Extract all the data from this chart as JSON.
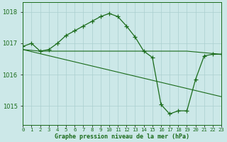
{
  "title": "Graphe pression niveau de la mer (hPa)",
  "background_color": "#cce8e8",
  "grid_color": "#aacfcf",
  "line_color": "#1a6b1a",
  "marker_color": "#1a6b1a",
  "xlim": [
    0,
    23
  ],
  "ylim": [
    1014.4,
    1018.3
  ],
  "yticks": [
    1015,
    1016,
    1017,
    1018
  ],
  "xtick_labels": [
    "0",
    "1",
    "2",
    "3",
    "4",
    "5",
    "6",
    "7",
    "8",
    "9",
    "10",
    "11",
    "12",
    "13",
    "14",
    "15",
    "16",
    "17",
    "18",
    "19",
    "20",
    "21",
    "22",
    "23"
  ],
  "series_main": {
    "x": [
      0,
      1,
      2,
      3,
      4,
      5,
      6,
      7,
      8,
      9,
      10,
      11,
      12,
      13,
      14,
      15,
      16,
      17,
      18,
      19,
      20,
      21,
      22,
      23
    ],
    "y": [
      1016.9,
      1017.0,
      1016.75,
      1016.8,
      1017.0,
      1017.25,
      1017.4,
      1017.55,
      1017.7,
      1017.85,
      1017.95,
      1017.85,
      1017.55,
      1017.2,
      1016.75,
      1016.55,
      1015.05,
      1014.75,
      1014.85,
      1014.85,
      1015.85,
      1016.6,
      1016.65,
      1016.65
    ]
  },
  "series_flat": {
    "x": [
      0,
      2,
      3,
      14,
      19,
      23
    ],
    "y": [
      1016.8,
      1016.75,
      1016.75,
      1016.75,
      1016.75,
      1016.65
    ]
  },
  "series_diagonal": {
    "x": [
      0,
      23
    ],
    "y": [
      1016.8,
      1015.3
    ]
  }
}
